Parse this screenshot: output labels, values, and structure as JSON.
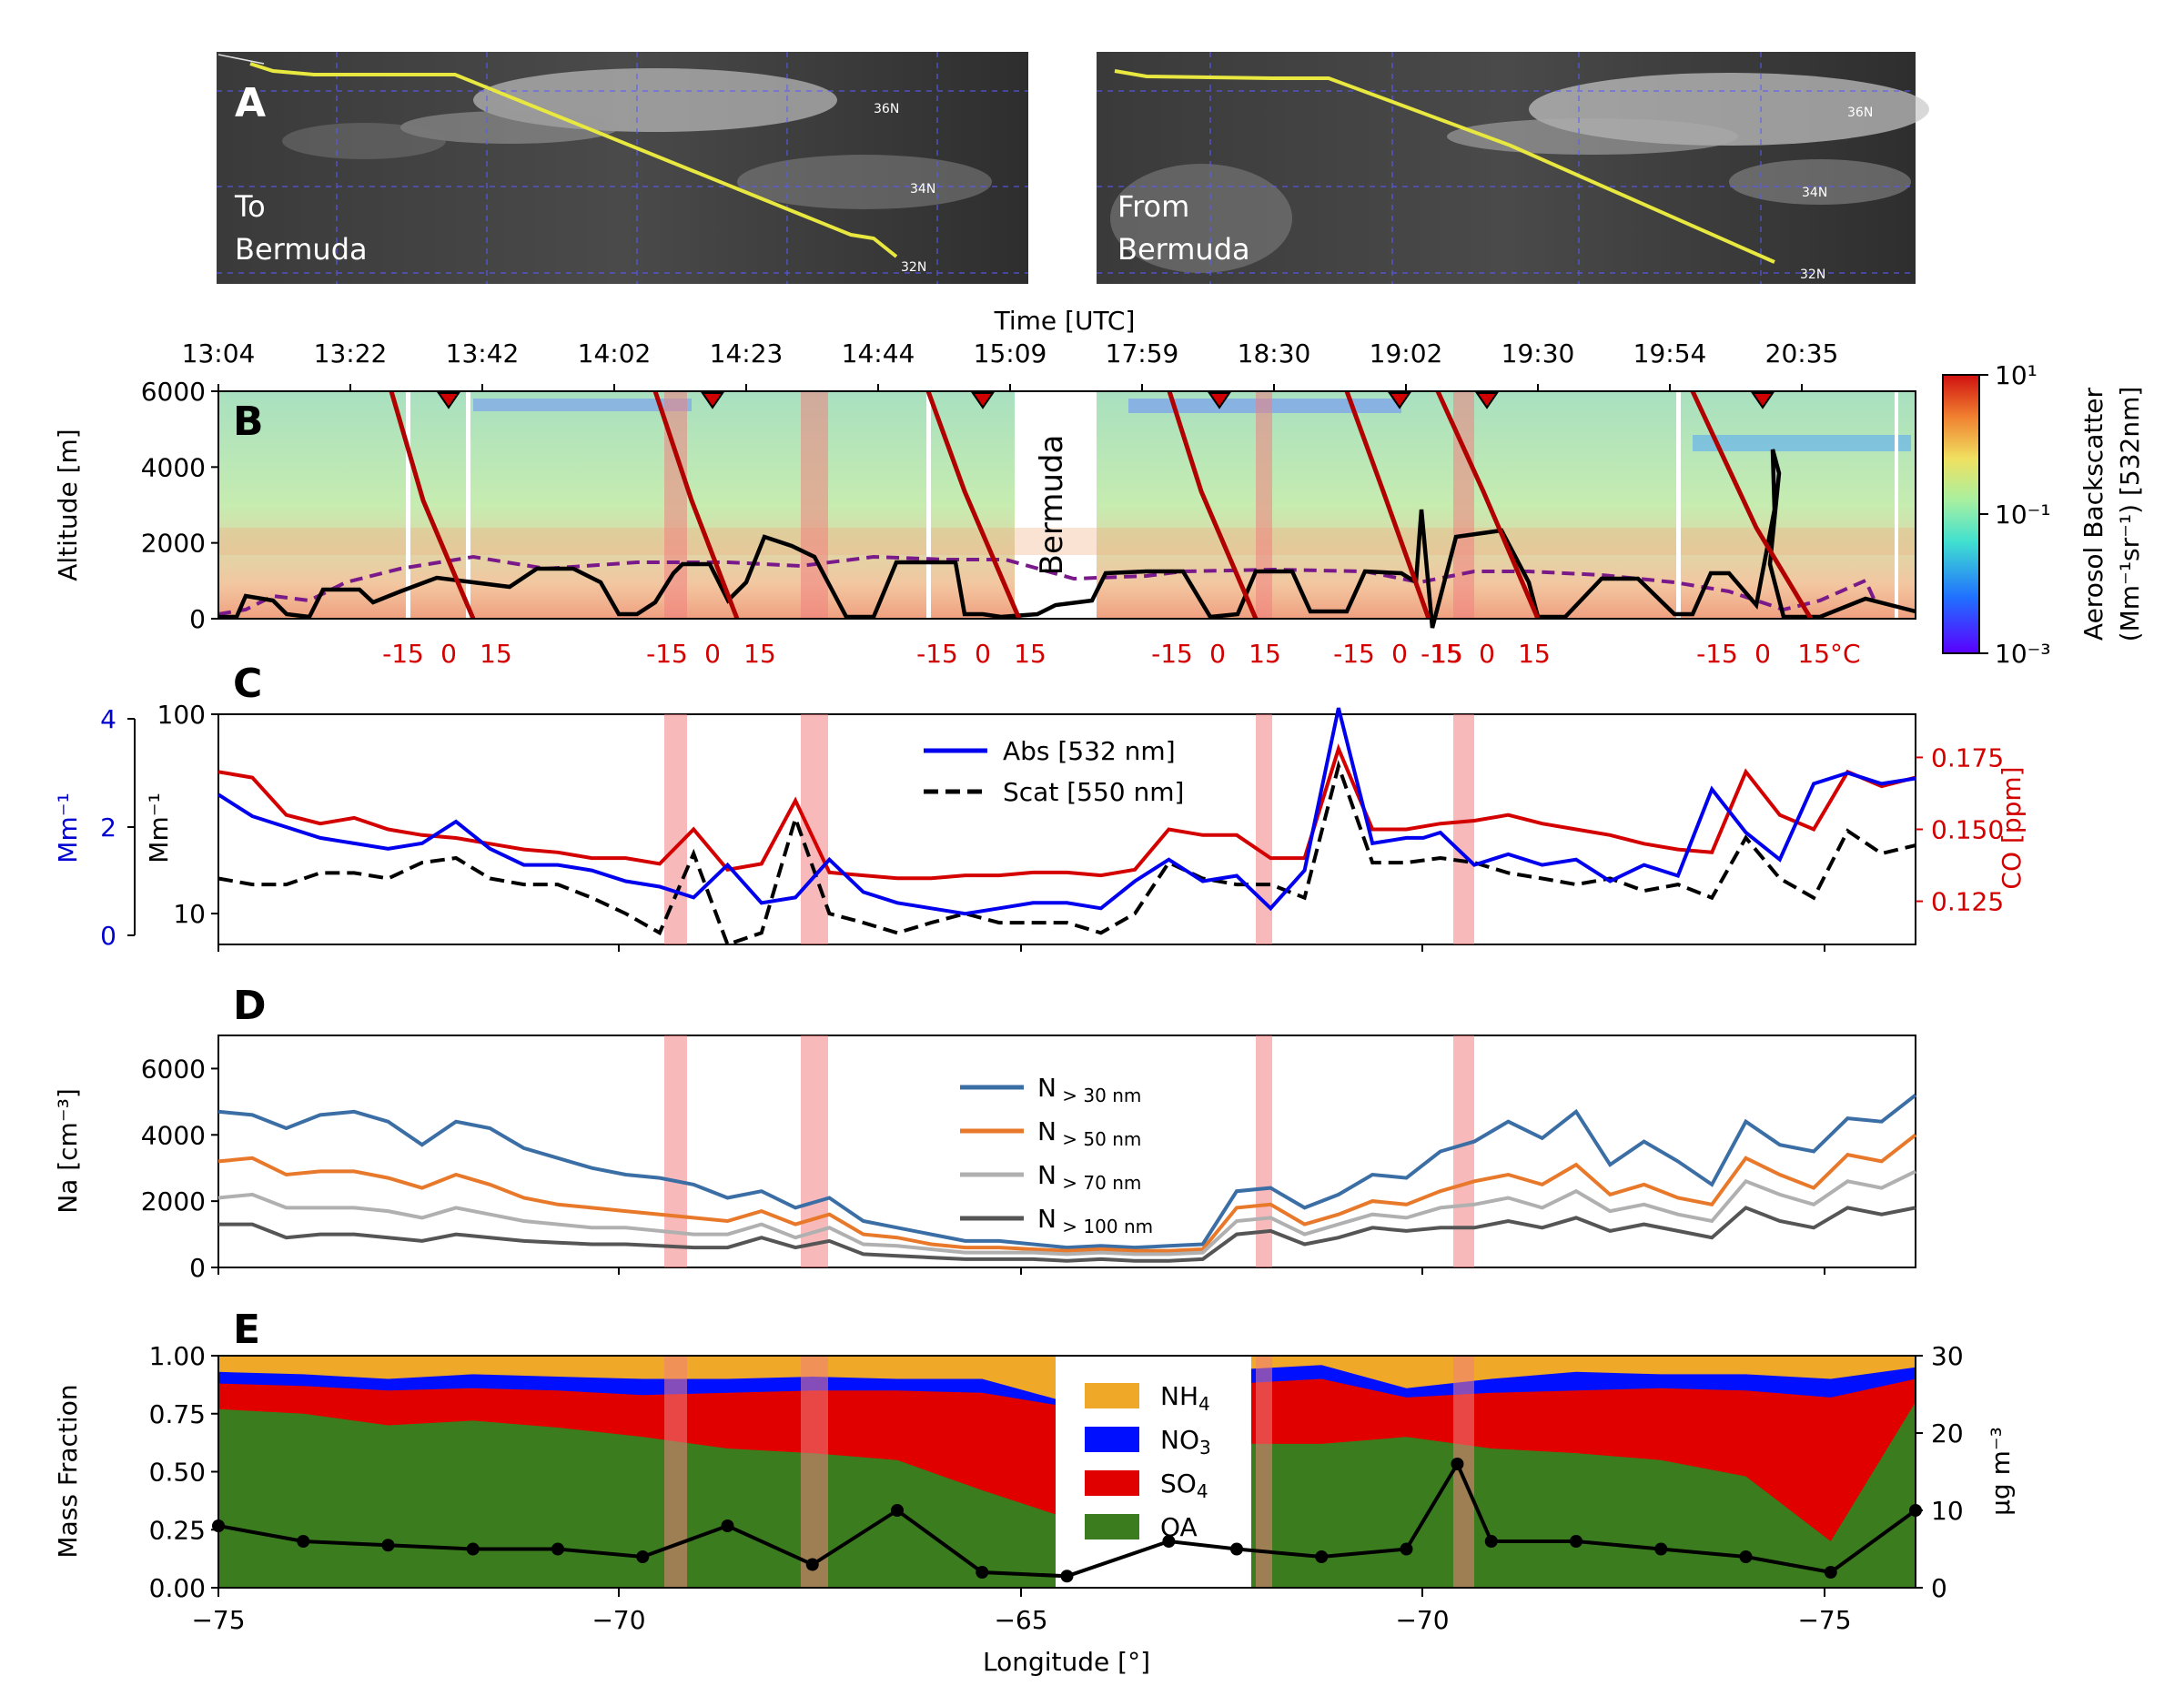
{
  "panels": {
    "a": "A",
    "b": "B",
    "c": "C",
    "d": "D",
    "e": "E"
  },
  "maps": {
    "to_label_1": "To",
    "to_label_2": "Bermuda",
    "from_label_1": "From",
    "from_label_2": "Bermuda",
    "lat_labels": [
      "36N",
      "34N",
      "32N"
    ]
  },
  "top_axis": {
    "title": "Time [UTC]",
    "ticks": [
      "13:04",
      "13:22",
      "13:42",
      "14:02",
      "14:23",
      "14:44",
      "15:09",
      "17:59",
      "18:30",
      "19:02",
      "19:30",
      "19:54",
      "20:35"
    ]
  },
  "panel_b": {
    "ylabel": "Altitude [m]",
    "yticks": [
      "0",
      "2000",
      "4000",
      "6000"
    ],
    "ylim": [
      0,
      6000
    ],
    "bermuda_label": "Bermuda",
    "temp_ticks": [
      "-15",
      "0",
      "15"
    ],
    "last_temp_tick": "15°C",
    "colorbar": {
      "label_1": "Aerosol Backscatter",
      "label_2": "(Mm⁻¹sr⁻¹) [532nm]",
      "ticks": [
        "10¹",
        "10⁻¹",
        "10⁻³"
      ]
    }
  },
  "panel_c": {
    "ylabel_abs": "Mm⁻¹",
    "ylabel_scat": "Mm⁻¹",
    "ylabel_co": "CO [ppm]",
    "abs_ticks": [
      "0",
      "2",
      "4"
    ],
    "scat_ticks": [
      "10",
      "100"
    ],
    "co_ticks": [
      "0.125",
      "0.150",
      "0.175"
    ],
    "legend": [
      "Abs [532 nm]",
      "Scat [550 nm]"
    ]
  },
  "panel_d": {
    "ylabel": "Na [cm⁻³]",
    "yticks": [
      "0",
      "2000",
      "4000",
      "6000"
    ],
    "legend_prefix": "N",
    "legend_subs": [
      "> 30 nm",
      "> 50 nm",
      "> 70 nm",
      "> 100 nm"
    ]
  },
  "panel_e": {
    "ylabel": "Mass Fraction",
    "ylabel_right": "μg m⁻³",
    "yticks": [
      "0.00",
      "0.25",
      "0.50",
      "0.75",
      "1.00"
    ],
    "right_ticks": [
      "0",
      "10",
      "20",
      "30"
    ],
    "legend": [
      {
        "base": "NH",
        "sub": "4"
      },
      {
        "base": "NO",
        "sub": "3"
      },
      {
        "base": "SO",
        "sub": "4"
      },
      {
        "base": "OA",
        "sub": ""
      }
    ]
  },
  "x_axis": {
    "label": "Longitude [°]",
    "ticks": [
      "−75",
      "−70",
      "−65",
      "−70",
      "−75"
    ]
  },
  "colors": {
    "abs": "#0000ee",
    "scat": "#000000",
    "co": "#d40000",
    "n30": "#3a6ea5",
    "n50": "#e8782a",
    "n70": "#b0b0b0",
    "n100": "#555555",
    "nh4": "#f0a828",
    "no3": "#0010ff",
    "so4": "#e00000",
    "oa": "#3b7d1e",
    "highlight": "#f08080"
  },
  "chart_data": [
    {
      "type": "line",
      "panel": "C",
      "title": "",
      "series": [
        {
          "name": "Abs [532 nm]",
          "x": [
            0,
            0.02,
            0.04,
            0.06,
            0.08,
            0.1,
            0.12,
            0.14,
            0.16,
            0.18,
            0.2,
            0.22,
            0.24,
            0.26,
            0.28,
            0.3,
            0.32,
            0.34,
            0.36,
            0.38,
            0.4,
            0.42,
            0.44,
            0.46,
            0.48,
            0.5,
            0.52,
            0.54,
            0.56,
            0.58,
            0.6,
            0.62,
            0.64,
            0.66,
            0.68,
            0.7,
            0.71,
            0.72,
            0.74,
            0.76,
            0.78,
            0.8,
            0.82,
            0.84,
            0.86,
            0.88,
            0.9,
            0.92,
            0.94,
            0.96,
            0.98,
            1.0
          ],
          "values": [
            2.6,
            2.2,
            2.0,
            1.8,
            1.7,
            1.6,
            1.7,
            2.1,
            1.6,
            1.3,
            1.3,
            1.2,
            1.0,
            0.9,
            0.7,
            1.3,
            0.6,
            0.7,
            1.4,
            0.8,
            0.6,
            0.5,
            0.4,
            0.5,
            0.6,
            0.6,
            0.5,
            1.0,
            1.4,
            1.0,
            1.1,
            0.5,
            1.2,
            4.2,
            1.7,
            1.8,
            1.8,
            1.9,
            1.3,
            1.5,
            1.3,
            1.4,
            1.0,
            1.3,
            1.1,
            2.7,
            1.9,
            1.4,
            2.8,
            3.0,
            2.8,
            2.9
          ]
        },
        {
          "name": "Scat [550 nm]",
          "x": [
            0,
            0.02,
            0.04,
            0.06,
            0.08,
            0.1,
            0.12,
            0.14,
            0.16,
            0.18,
            0.2,
            0.22,
            0.24,
            0.26,
            0.28,
            0.3,
            0.32,
            0.34,
            0.36,
            0.38,
            0.4,
            0.42,
            0.44,
            0.46,
            0.48,
            0.5,
            0.52,
            0.54,
            0.56,
            0.58,
            0.6,
            0.62,
            0.64,
            0.66,
            0.68,
            0.7,
            0.72,
            0.74,
            0.76,
            0.78,
            0.8,
            0.82,
            0.84,
            0.86,
            0.88,
            0.9,
            0.92,
            0.94,
            0.96,
            0.98,
            1.0
          ],
          "values": [
            15,
            14,
            14,
            16,
            16,
            15,
            18,
            19,
            15,
            14,
            14,
            12,
            10,
            8,
            20,
            7,
            8,
            30,
            10,
            9,
            8,
            9,
            10,
            9,
            9,
            9,
            8,
            10,
            18,
            15,
            14,
            14,
            12,
            55,
            18,
            18,
            19,
            18,
            16,
            15,
            14,
            15,
            13,
            14,
            12,
            24,
            15,
            12,
            26,
            20,
            22
          ]
        },
        {
          "name": "CO [ppm]",
          "x": [
            0,
            0.02,
            0.04,
            0.06,
            0.08,
            0.1,
            0.12,
            0.14,
            0.16,
            0.18,
            0.2,
            0.22,
            0.24,
            0.26,
            0.28,
            0.3,
            0.32,
            0.34,
            0.36,
            0.38,
            0.4,
            0.42,
            0.44,
            0.46,
            0.48,
            0.5,
            0.52,
            0.54,
            0.56,
            0.58,
            0.6,
            0.62,
            0.64,
            0.66,
            0.68,
            0.7,
            0.72,
            0.74,
            0.76,
            0.78,
            0.8,
            0.82,
            0.84,
            0.86,
            0.88,
            0.9,
            0.92,
            0.94,
            0.96,
            0.98,
            1.0
          ],
          "values": [
            0.17,
            0.168,
            0.155,
            0.152,
            0.154,
            0.15,
            0.148,
            0.147,
            0.145,
            0.143,
            0.142,
            0.14,
            0.14,
            0.138,
            0.15,
            0.136,
            0.138,
            0.16,
            0.135,
            0.134,
            0.133,
            0.133,
            0.134,
            0.134,
            0.135,
            0.135,
            0.134,
            0.136,
            0.15,
            0.148,
            0.148,
            0.14,
            0.14,
            0.178,
            0.15,
            0.15,
            0.152,
            0.153,
            0.155,
            0.152,
            0.15,
            0.148,
            0.145,
            0.143,
            0.142,
            0.17,
            0.155,
            0.15,
            0.17,
            0.165,
            0.168
          ]
        }
      ],
      "ylim_abs": [
        0,
        4
      ],
      "ylim_scat": [
        7,
        100
      ],
      "ylim_co": [
        0.11,
        0.19
      ]
    },
    {
      "type": "line",
      "panel": "D",
      "x": [
        0,
        0.02,
        0.04,
        0.06,
        0.08,
        0.1,
        0.12,
        0.14,
        0.16,
        0.18,
        0.2,
        0.22,
        0.24,
        0.26,
        0.28,
        0.3,
        0.32,
        0.34,
        0.36,
        0.38,
        0.4,
        0.42,
        0.44,
        0.46,
        0.48,
        0.5,
        0.52,
        0.54,
        0.56,
        0.58,
        0.6,
        0.62,
        0.64,
        0.66,
        0.68,
        0.7,
        0.72,
        0.74,
        0.76,
        0.78,
        0.8,
        0.82,
        0.84,
        0.86,
        0.88,
        0.9,
        0.92,
        0.94,
        0.96,
        0.98,
        1.0
      ],
      "series": [
        {
          "name": "N > 30 nm",
          "values": [
            4700,
            4600,
            4200,
            4600,
            4700,
            4400,
            3700,
            4400,
            4200,
            3600,
            3300,
            3000,
            2800,
            2700,
            2500,
            2100,
            2300,
            1800,
            2100,
            1400,
            1200,
            1000,
            800,
            800,
            700,
            600,
            650,
            600,
            650,
            700,
            2300,
            2400,
            1800,
            2200,
            2800,
            2700,
            3500,
            3800,
            4400,
            3900,
            4700,
            3100,
            3800,
            3200,
            2500,
            4400,
            3700,
            3500,
            4500,
            4400,
            5200
          ]
        },
        {
          "name": "N > 50 nm",
          "values": [
            3200,
            3300,
            2800,
            2900,
            2900,
            2700,
            2400,
            2800,
            2500,
            2100,
            1900,
            1800,
            1700,
            1600,
            1500,
            1400,
            1700,
            1300,
            1600,
            1000,
            900,
            700,
            600,
            600,
            550,
            500,
            550,
            500,
            500,
            550,
            1800,
            1900,
            1300,
            1600,
            2000,
            1900,
            2300,
            2600,
            2800,
            2500,
            3100,
            2200,
            2500,
            2100,
            1900,
            3300,
            2800,
            2400,
            3400,
            3200,
            4000
          ]
        },
        {
          "name": "N > 70 nm",
          "values": [
            2100,
            2200,
            1800,
            1800,
            1800,
            1700,
            1500,
            1800,
            1600,
            1400,
            1300,
            1200,
            1200,
            1100,
            1000,
            1000,
            1300,
            900,
            1200,
            700,
            650,
            550,
            450,
            450,
            450,
            400,
            450,
            400,
            400,
            450,
            1400,
            1500,
            1000,
            1300,
            1600,
            1500,
            1800,
            1900,
            2100,
            1800,
            2300,
            1700,
            1900,
            1600,
            1400,
            2600,
            2200,
            1900,
            2600,
            2400,
            2900
          ]
        },
        {
          "name": "N > 100 nm",
          "values": [
            1300,
            1300,
            900,
            1000,
            1000,
            900,
            800,
            1000,
            900,
            800,
            750,
            700,
            700,
            650,
            600,
            600,
            900,
            600,
            800,
            400,
            350,
            300,
            250,
            250,
            250,
            200,
            250,
            200,
            200,
            250,
            1000,
            1100,
            700,
            900,
            1200,
            1100,
            1200,
            1200,
            1400,
            1200,
            1500,
            1100,
            1300,
            1100,
            900,
            1800,
            1400,
            1200,
            1800,
            1600,
            1800
          ]
        }
      ],
      "ylim": [
        0,
        7000
      ]
    },
    {
      "type": "area",
      "panel": "E",
      "x": [
        0,
        0.05,
        0.1,
        0.15,
        0.2,
        0.25,
        0.3,
        0.35,
        0.4,
        0.45,
        0.5,
        0.55,
        0.6,
        0.65,
        0.7,
        0.75,
        0.8,
        0.85,
        0.9,
        0.95,
        1.0
      ],
      "series": [
        {
          "name": "OA",
          "values": [
            0.77,
            0.75,
            0.7,
            0.72,
            0.69,
            0.65,
            0.6,
            0.58,
            0.55,
            0.42,
            0.3,
            0.6,
            0.62,
            0.62,
            0.65,
            0.6,
            0.58,
            0.55,
            0.48,
            0.2,
            0.8
          ]
        },
        {
          "name": "SO4",
          "values": [
            0.88,
            0.87,
            0.85,
            0.86,
            0.85,
            0.83,
            0.84,
            0.85,
            0.85,
            0.84,
            0.78,
            0.86,
            0.88,
            0.9,
            0.82,
            0.84,
            0.85,
            0.86,
            0.85,
            0.82,
            0.9
          ]
        },
        {
          "name": "NO3",
          "values": [
            0.93,
            0.92,
            0.9,
            0.92,
            0.91,
            0.9,
            0.9,
            0.91,
            0.9,
            0.9,
            0.8,
            0.9,
            0.94,
            0.96,
            0.86,
            0.9,
            0.93,
            0.92,
            0.92,
            0.9,
            0.95
          ]
        },
        {
          "name": "NH4",
          "values": [
            1,
            1,
            1,
            1,
            1,
            1,
            1,
            1,
            1,
            1,
            1,
            1,
            1,
            1,
            1,
            1,
            1,
            1,
            1,
            1,
            1
          ]
        }
      ],
      "total_mass": {
        "x": [
          0,
          0.05,
          0.1,
          0.15,
          0.2,
          0.25,
          0.3,
          0.35,
          0.4,
          0.45,
          0.5,
          0.56,
          0.6,
          0.65,
          0.7,
          0.73,
          0.75,
          0.8,
          0.85,
          0.9,
          0.95,
          1.0
        ],
        "values": [
          8,
          6,
          5.5,
          5,
          5,
          4,
          8,
          3,
          10,
          2,
          1.5,
          6,
          5,
          4,
          5,
          16,
          6,
          6,
          5,
          4,
          2,
          10
        ]
      },
      "ylim": [
        0,
        1
      ],
      "ylim_right": [
        0,
        30
      ]
    }
  ]
}
